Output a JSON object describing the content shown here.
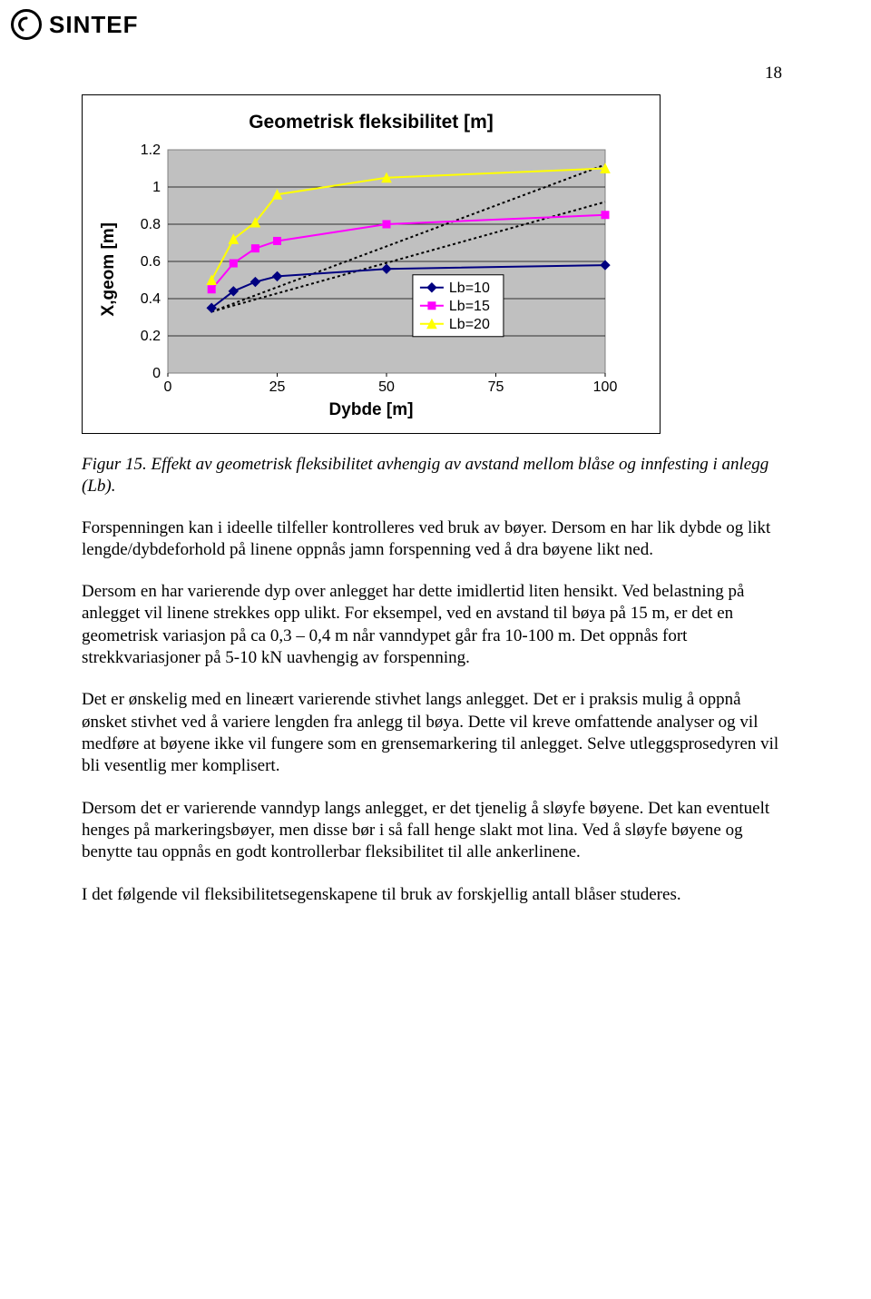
{
  "header": {
    "logo_text": "SINTEF"
  },
  "page_number": "18",
  "chart": {
    "type": "line",
    "title": "Geometrisk fleksibilitet [m]",
    "ylabel": "X,geom [m]",
    "xlabel": "Dybde [m]",
    "xlim": [
      0,
      100
    ],
    "ylim": [
      0,
      1.2
    ],
    "xticks": [
      0,
      25,
      50,
      75,
      100
    ],
    "yticks": [
      0,
      0.2,
      0.4,
      0.6,
      0.8,
      1,
      1.2
    ],
    "xtick_labels": [
      "0",
      "25",
      "50",
      "75",
      "100"
    ],
    "ytick_labels": [
      "0",
      "0.2",
      "0.4",
      "0.6",
      "0.8",
      "1",
      "1.2"
    ],
    "axis_label_fontsize": 19,
    "title_fontsize": 21,
    "tick_fontsize": 16,
    "background_color": "#ffffff",
    "plot_area_color": "#c0c0c0",
    "grid_color": "#000000",
    "trend_lines": [
      {
        "x1": 10,
        "y1": 0.33,
        "x2": 100,
        "y2": 1.12,
        "dash": "3,3",
        "color": "#000000",
        "width": 2
      },
      {
        "x1": 10,
        "y1": 0.33,
        "x2": 100,
        "y2": 0.92,
        "dash": "3,3",
        "color": "#000000",
        "width": 2
      }
    ],
    "series": [
      {
        "name": "Lb=10",
        "color": "#000080",
        "marker": "diamond",
        "marker_color": "#000080",
        "line_width": 2,
        "x": [
          10,
          15,
          20,
          25,
          50,
          100
        ],
        "y": [
          0.35,
          0.44,
          0.49,
          0.52,
          0.56,
          0.58
        ]
      },
      {
        "name": "Lb=15",
        "color": "#ff00ff",
        "marker": "square",
        "marker_color": "#ff00ff",
        "line_width": 2,
        "x": [
          10,
          15,
          20,
          25,
          50,
          100
        ],
        "y": [
          0.45,
          0.59,
          0.67,
          0.71,
          0.8,
          0.85
        ]
      },
      {
        "name": "Lb=20",
        "color": "#ffff00",
        "marker": "triangle",
        "marker_color": "#ffff00",
        "line_width": 2,
        "x": [
          10,
          15,
          20,
          25,
          50,
          100
        ],
        "y": [
          0.5,
          0.72,
          0.81,
          0.96,
          1.05,
          1.1
        ]
      }
    ],
    "legend": {
      "position": "inside-right",
      "bg": "#ffffff",
      "border": "#000000",
      "fontsize": 16
    }
  },
  "caption": "Figur 15. Effekt av geometrisk fleksibilitet avhengig av avstand mellom blåse og innfesting i anlegg (Lb).",
  "paragraphs": [
    "Forspenningen kan i ideelle tilfeller kontrolleres ved bruk av bøyer. Dersom en har lik dybde og likt lengde/dybdeforhold på linene oppnås jamn forspenning ved å dra bøyene likt ned.",
    "Dersom en har varierende dyp over anlegget har dette imidlertid liten hensikt. Ved belastning på anlegget vil linene strekkes opp ulikt. For eksempel, ved en avstand til bøya på 15 m, er det en geometrisk variasjon på ca 0,3 – 0,4 m når vanndypet går fra 10-100 m. Det oppnås fort strekkvariasjoner på 5-10 kN uavhengig av forspenning.",
    "Det er ønskelig med en lineært varierende stivhet langs anlegget. Det er i praksis mulig å oppnå ønsket stivhet ved å variere lengden fra anlegg til bøya. Dette vil kreve omfattende analyser og vil medføre at bøyene ikke vil fungere som en grensemarkering til anlegget. Selve utleggsprosedyren vil bli vesentlig mer komplisert.",
    "Dersom det er varierende vanndyp langs anlegget, er det tjenelig å sløyfe bøyene. Det kan eventuelt henges på markeringsbøyer, men disse bør i så fall henge slakt mot lina. Ved å sløyfe bøyene og benytte tau oppnås en godt kontrollerbar fleksibilitet til alle ankerlinene.",
    "I det følgende vil fleksibilitetsegenskapene til bruk av forskjellig antall blåser studeres."
  ]
}
